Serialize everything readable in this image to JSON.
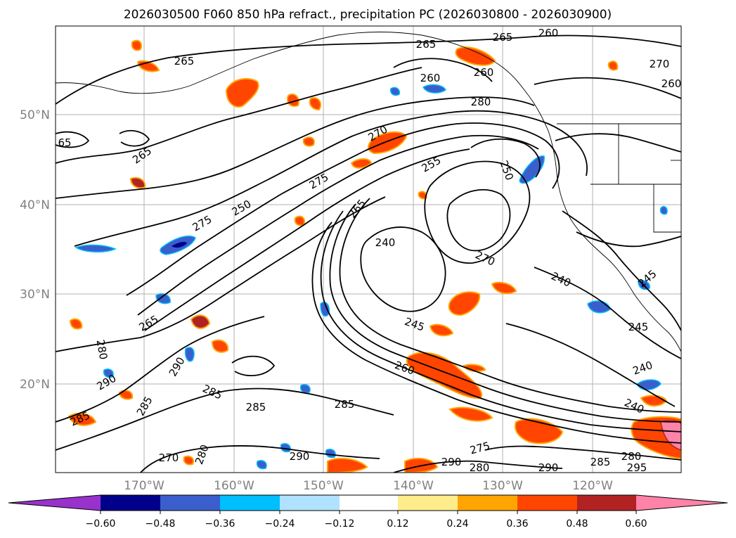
{
  "title": "2026030500 F060 850 hPa refract., precipitation PC (2026030800 - 2026030900)",
  "latitude_labels": [
    "50°N",
    "40°N",
    "30°N",
    "20°N"
  ],
  "longitude_labels": [
    "170°W",
    "160°W",
    "150°W",
    "140°W",
    "130°W",
    "120°W"
  ],
  "colorbar": {
    "tick_labels": [
      "−0.60",
      "−0.48",
      "−0.36",
      "−0.24",
      "−0.12",
      "0.12",
      "0.24",
      "0.36",
      "0.48",
      "0.60"
    ],
    "colors": [
      "#9932cc",
      "#00008b",
      "#3a5fcd",
      "#00bfff",
      "#b0e2ff",
      "#ffffff",
      "#ffec8b",
      "#ffa500",
      "#ff4500",
      "#b22222",
      "#ff83a8"
    ]
  },
  "colors": {
    "contour": "#000000",
    "grid": "#b0b0b0",
    "axis_label": "#808080"
  },
  "contour_labels": [
    "265",
    "265",
    "260",
    "265",
    "260",
    "270",
    "260",
    "260",
    "280",
    "265",
    "65",
    "270",
    "255",
    "250",
    "275",
    "250",
    "275",
    "265",
    "240",
    "270",
    "240",
    "245",
    "245",
    "245",
    "240",
    "240",
    "260",
    "265",
    "280",
    "290",
    "290",
    "285",
    "285",
    "285",
    "285",
    "270",
    "280",
    "285",
    "290",
    "275",
    "290",
    "280",
    "285",
    "280",
    "295",
    "290"
  ]
}
